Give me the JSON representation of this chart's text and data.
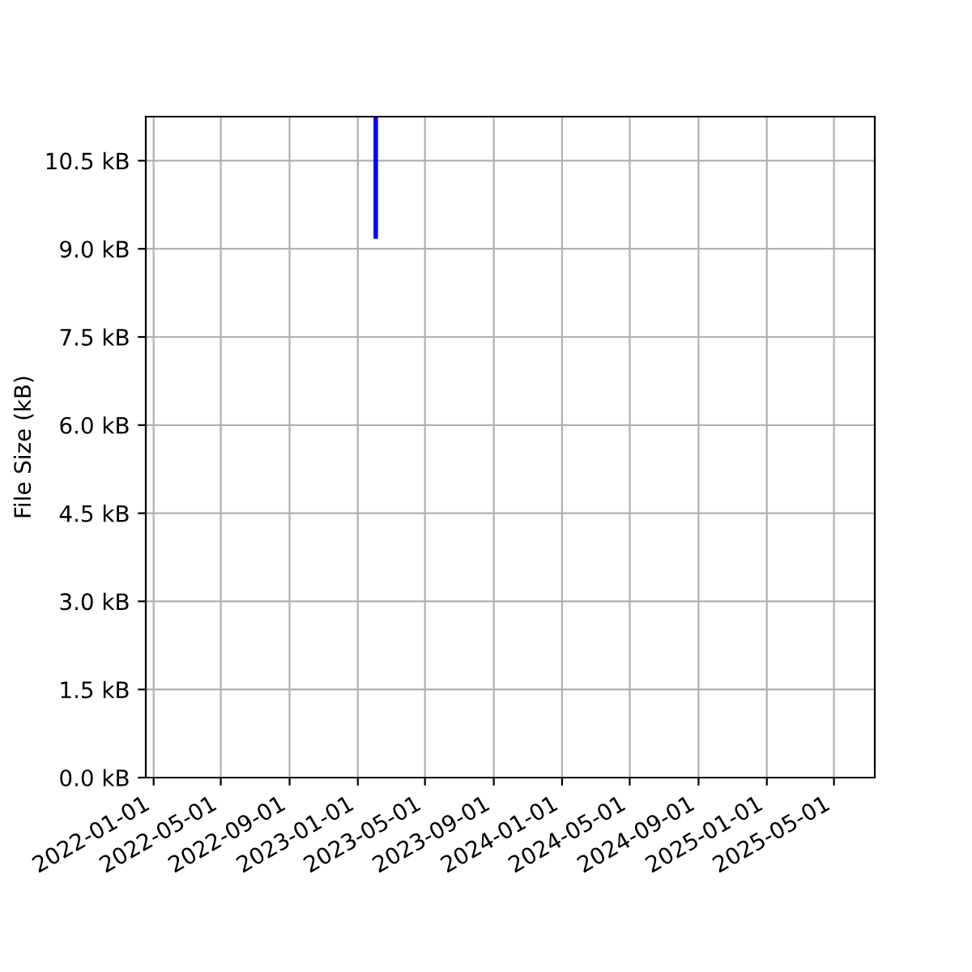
{
  "chart_data": {
    "type": "line",
    "ylabel": "File Size (kB)",
    "x": [
      "2023-02-02",
      "2023-02-02"
    ],
    "series": [
      {
        "color": "#0000ff",
        "values": [
          9.17,
          11.25
        ]
      }
    ],
    "xlim": [
      "2021-12-18",
      "2025-07-13"
    ],
    "xticks": [
      "2022-01-01",
      "2022-05-01",
      "2022-09-01",
      "2023-01-01",
      "2023-05-01",
      "2023-09-01",
      "2024-01-01",
      "2024-05-01",
      "2024-09-01",
      "2025-01-01",
      "2025-05-01"
    ],
    "ylim": [
      0,
      11.25
    ],
    "yticks": [
      {
        "value": 0,
        "label": "0.0 kB"
      },
      {
        "value": 1.5,
        "label": "1.5 kB"
      },
      {
        "value": 3,
        "label": "3.0 kB"
      },
      {
        "value": 4.5,
        "label": "4.5 kB"
      },
      {
        "value": 6,
        "label": "6.0 kB"
      },
      {
        "value": 7.5,
        "label": "7.5 kB"
      },
      {
        "value": 9,
        "label": "9.0 kB"
      },
      {
        "value": 10.5,
        "label": "10.5 kB"
      }
    ],
    "grid": true
  }
}
